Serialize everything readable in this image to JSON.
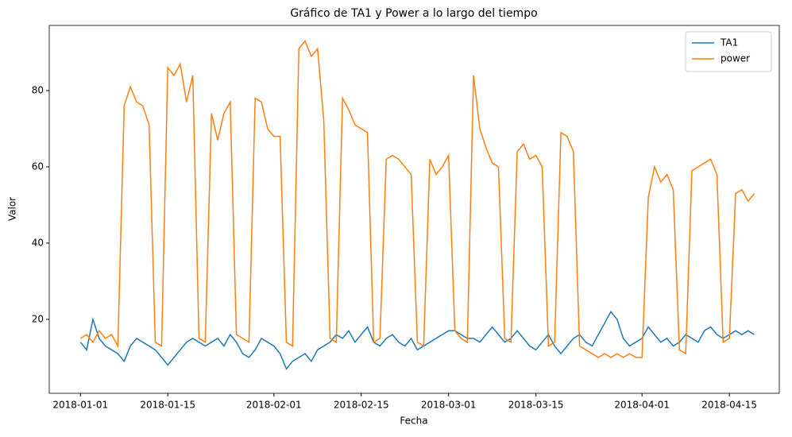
{
  "chart_data": {
    "type": "line",
    "title": "Gráfico de TA1 y Power a lo largo del tiempo",
    "x_label": "Fecha",
    "y_label": "Valor",
    "x": [
      "2018-01-01",
      "2018-01-02",
      "2018-01-03",
      "2018-01-04",
      "2018-01-05",
      "2018-01-06",
      "2018-01-07",
      "2018-01-08",
      "2018-01-09",
      "2018-01-10",
      "2018-01-11",
      "2018-01-12",
      "2018-01-13",
      "2018-01-14",
      "2018-01-15",
      "2018-01-16",
      "2018-01-17",
      "2018-01-18",
      "2018-01-19",
      "2018-01-20",
      "2018-01-21",
      "2018-01-22",
      "2018-01-23",
      "2018-01-24",
      "2018-01-25",
      "2018-01-26",
      "2018-01-27",
      "2018-01-28",
      "2018-01-29",
      "2018-01-30",
      "2018-01-31",
      "2018-02-01",
      "2018-02-02",
      "2018-02-03",
      "2018-02-04",
      "2018-02-05",
      "2018-02-06",
      "2018-02-07",
      "2018-02-08",
      "2018-02-09",
      "2018-02-10",
      "2018-02-11",
      "2018-02-12",
      "2018-02-13",
      "2018-02-14",
      "2018-02-15",
      "2018-02-16",
      "2018-02-17",
      "2018-02-18",
      "2018-02-19",
      "2018-02-20",
      "2018-02-21",
      "2018-02-22",
      "2018-02-23",
      "2018-02-24",
      "2018-02-25",
      "2018-02-26",
      "2018-02-27",
      "2018-02-28",
      "2018-03-01",
      "2018-03-02",
      "2018-03-03",
      "2018-03-04",
      "2018-03-05",
      "2018-03-06",
      "2018-03-07",
      "2018-03-08",
      "2018-03-09",
      "2018-03-10",
      "2018-03-11",
      "2018-03-12",
      "2018-03-13",
      "2018-03-14",
      "2018-03-15",
      "2018-03-16",
      "2018-03-17",
      "2018-03-18",
      "2018-03-19",
      "2018-03-20",
      "2018-03-21",
      "2018-03-22",
      "2018-03-23",
      "2018-03-24",
      "2018-03-25",
      "2018-03-26",
      "2018-03-27",
      "2018-03-28",
      "2018-03-29",
      "2018-03-30",
      "2018-03-31",
      "2018-04-01",
      "2018-04-02",
      "2018-04-03",
      "2018-04-04",
      "2018-04-05",
      "2018-04-06",
      "2018-04-07",
      "2018-04-08",
      "2018-04-09",
      "2018-04-10",
      "2018-04-11",
      "2018-04-12",
      "2018-04-13",
      "2018-04-14",
      "2018-04-15",
      "2018-04-16",
      "2018-04-17",
      "2018-04-18",
      "2018-04-19"
    ],
    "series": [
      {
        "name": "TA1",
        "color": "#1f77b4",
        "values": [
          14,
          12,
          20,
          15,
          13,
          12,
          11,
          9,
          13,
          15,
          14,
          13,
          12,
          10,
          8,
          10,
          12,
          14,
          15,
          14,
          13,
          14,
          15,
          13,
          16,
          14,
          11,
          10,
          12,
          15,
          14,
          13,
          11,
          7,
          9,
          10,
          11,
          9,
          12,
          13,
          14,
          16,
          15,
          17,
          14,
          16,
          18,
          14,
          13,
          15,
          16,
          14,
          13,
          15,
          12,
          13,
          14,
          15,
          16,
          17,
          17,
          16,
          15,
          15,
          14,
          16,
          18,
          16,
          14,
          15,
          17,
          15,
          13,
          12,
          14,
          16,
          13,
          11,
          13,
          15,
          16,
          14,
          13,
          16,
          19,
          22,
          20,
          15,
          13,
          14,
          15,
          18,
          16,
          14,
          15,
          13,
          14,
          16,
          15,
          14,
          17,
          18,
          16,
          15,
          16,
          17,
          16,
          17,
          16
        ]
      },
      {
        "name": "power",
        "color": "#ff7f0e",
        "values": [
          15,
          16,
          14,
          17,
          15,
          16,
          13,
          76,
          81,
          77,
          76,
          71,
          14,
          13,
          86,
          84,
          87,
          77,
          84,
          15,
          14,
          74,
          67,
          74,
          77,
          16,
          15,
          14,
          78,
          77,
          70,
          68,
          68,
          14,
          13,
          91,
          93,
          89,
          91,
          72,
          15,
          14,
          78,
          75,
          71,
          70,
          69,
          14,
          15,
          62,
          63,
          62,
          60,
          58,
          14,
          13,
          62,
          58,
          60,
          63,
          17,
          15,
          14,
          84,
          70,
          65,
          61,
          60,
          15,
          14,
          64,
          66,
          62,
          63,
          60,
          13,
          14,
          69,
          68,
          64,
          13,
          12,
          11,
          10,
          11,
          10,
          11,
          10,
          11,
          10,
          10,
          52,
          60,
          56,
          58,
          54,
          12,
          11,
          59,
          60,
          61,
          62,
          58,
          14,
          15,
          53,
          54,
          51,
          53
        ]
      }
    ],
    "xlim": [
      "2017-12-27",
      "2018-04-23"
    ],
    "xticks": [
      "2018-01-01",
      "2018-01-15",
      "2018-02-01",
      "2018-02-15",
      "2018-03-01",
      "2018-03-15",
      "2018-04-01",
      "2018-04-15"
    ],
    "ylim": [
      0.6,
      97.1
    ],
    "yticks": [
      20,
      40,
      60,
      80
    ],
    "legend": "upper right"
  }
}
